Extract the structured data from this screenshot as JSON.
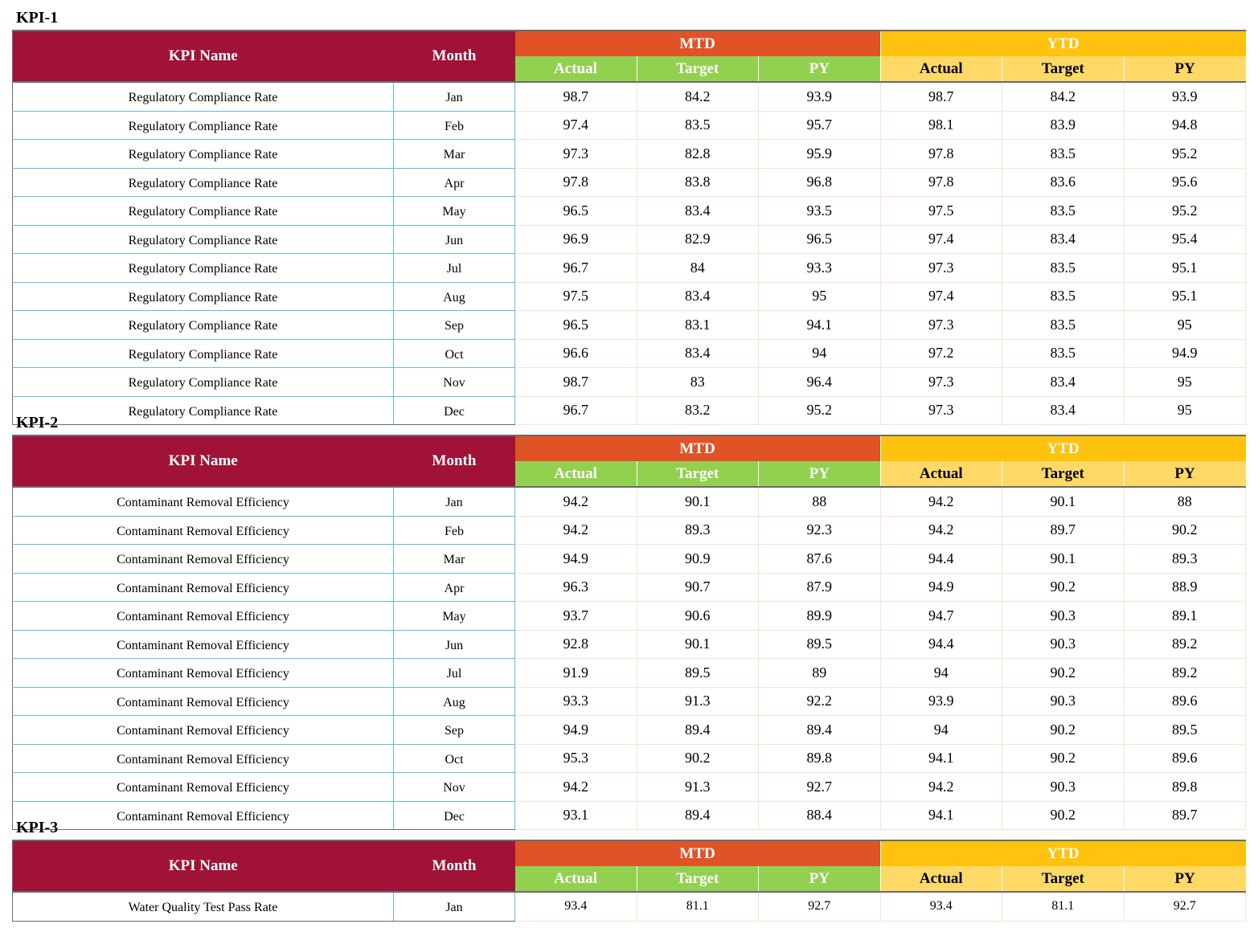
{
  "headers": {
    "kpi_name": "KPI Name",
    "month": "Month",
    "mtd": "MTD",
    "ytd": "YTD",
    "actual": "Actual",
    "target": "Target",
    "py": "PY"
  },
  "colors": {
    "kpi_header": "#a01237",
    "mtd": "#e05326",
    "ytd": "#ffc20e",
    "mtd_sub": "#92d050",
    "ytd_sub": "#ffd966"
  },
  "kpis": [
    {
      "title": "KPI-1",
      "rows": [
        {
          "name": "Regulatory Compliance Rate",
          "month": "Jan",
          "mtd_actual": "98.7",
          "mtd_target": "84.2",
          "mtd_py": "93.9",
          "ytd_actual": "98.7",
          "ytd_target": "84.2",
          "ytd_py": "93.9"
        },
        {
          "name": "Regulatory Compliance Rate",
          "month": "Feb",
          "mtd_actual": "97.4",
          "mtd_target": "83.5",
          "mtd_py": "95.7",
          "ytd_actual": "98.1",
          "ytd_target": "83.9",
          "ytd_py": "94.8"
        },
        {
          "name": "Regulatory Compliance Rate",
          "month": "Mar",
          "mtd_actual": "97.3",
          "mtd_target": "82.8",
          "mtd_py": "95.9",
          "ytd_actual": "97.8",
          "ytd_target": "83.5",
          "ytd_py": "95.2"
        },
        {
          "name": "Regulatory Compliance Rate",
          "month": "Apr",
          "mtd_actual": "97.8",
          "mtd_target": "83.8",
          "mtd_py": "96.8",
          "ytd_actual": "97.8",
          "ytd_target": "83.6",
          "ytd_py": "95.6"
        },
        {
          "name": "Regulatory Compliance Rate",
          "month": "May",
          "mtd_actual": "96.5",
          "mtd_target": "83.4",
          "mtd_py": "93.5",
          "ytd_actual": "97.5",
          "ytd_target": "83.5",
          "ytd_py": "95.2"
        },
        {
          "name": "Regulatory Compliance Rate",
          "month": "Jun",
          "mtd_actual": "96.9",
          "mtd_target": "82.9",
          "mtd_py": "96.5",
          "ytd_actual": "97.4",
          "ytd_target": "83.4",
          "ytd_py": "95.4"
        },
        {
          "name": "Regulatory Compliance Rate",
          "month": "Jul",
          "mtd_actual": "96.7",
          "mtd_target": "84",
          "mtd_py": "93.3",
          "ytd_actual": "97.3",
          "ytd_target": "83.5",
          "ytd_py": "95.1"
        },
        {
          "name": "Regulatory Compliance Rate",
          "month": "Aug",
          "mtd_actual": "97.5",
          "mtd_target": "83.4",
          "mtd_py": "95",
          "ytd_actual": "97.4",
          "ytd_target": "83.5",
          "ytd_py": "95.1"
        },
        {
          "name": "Regulatory Compliance Rate",
          "month": "Sep",
          "mtd_actual": "96.5",
          "mtd_target": "83.1",
          "mtd_py": "94.1",
          "ytd_actual": "97.3",
          "ytd_target": "83.5",
          "ytd_py": "95"
        },
        {
          "name": "Regulatory Compliance Rate",
          "month": "Oct",
          "mtd_actual": "96.6",
          "mtd_target": "83.4",
          "mtd_py": "94",
          "ytd_actual": "97.2",
          "ytd_target": "83.5",
          "ytd_py": "94.9"
        },
        {
          "name": "Regulatory Compliance Rate",
          "month": "Nov",
          "mtd_actual": "98.7",
          "mtd_target": "83",
          "mtd_py": "96.4",
          "ytd_actual": "97.3",
          "ytd_target": "83.4",
          "ytd_py": "95"
        },
        {
          "name": "Regulatory Compliance Rate",
          "month": "Dec",
          "mtd_actual": "96.7",
          "mtd_target": "83.2",
          "mtd_py": "95.2",
          "ytd_actual": "97.3",
          "ytd_target": "83.4",
          "ytd_py": "95"
        }
      ]
    },
    {
      "title": "KPI-2",
      "rows": [
        {
          "name": "Contaminant Removal Efficiency",
          "month": "Jan",
          "mtd_actual": "94.2",
          "mtd_target": "90.1",
          "mtd_py": "88",
          "ytd_actual": "94.2",
          "ytd_target": "90.1",
          "ytd_py": "88"
        },
        {
          "name": "Contaminant Removal Efficiency",
          "month": "Feb",
          "mtd_actual": "94.2",
          "mtd_target": "89.3",
          "mtd_py": "92.3",
          "ytd_actual": "94.2",
          "ytd_target": "89.7",
          "ytd_py": "90.2"
        },
        {
          "name": "Contaminant Removal Efficiency",
          "month": "Mar",
          "mtd_actual": "94.9",
          "mtd_target": "90.9",
          "mtd_py": "87.6",
          "ytd_actual": "94.4",
          "ytd_target": "90.1",
          "ytd_py": "89.3"
        },
        {
          "name": "Contaminant Removal Efficiency",
          "month": "Apr",
          "mtd_actual": "96.3",
          "mtd_target": "90.7",
          "mtd_py": "87.9",
          "ytd_actual": "94.9",
          "ytd_target": "90.2",
          "ytd_py": "88.9"
        },
        {
          "name": "Contaminant Removal Efficiency",
          "month": "May",
          "mtd_actual": "93.7",
          "mtd_target": "90.6",
          "mtd_py": "89.9",
          "ytd_actual": "94.7",
          "ytd_target": "90.3",
          "ytd_py": "89.1"
        },
        {
          "name": "Contaminant Removal Efficiency",
          "month": "Jun",
          "mtd_actual": "92.8",
          "mtd_target": "90.1",
          "mtd_py": "89.5",
          "ytd_actual": "94.4",
          "ytd_target": "90.3",
          "ytd_py": "89.2"
        },
        {
          "name": "Contaminant Removal Efficiency",
          "month": "Jul",
          "mtd_actual": "91.9",
          "mtd_target": "89.5",
          "mtd_py": "89",
          "ytd_actual": "94",
          "ytd_target": "90.2",
          "ytd_py": "89.2"
        },
        {
          "name": "Contaminant Removal Efficiency",
          "month": "Aug",
          "mtd_actual": "93.3",
          "mtd_target": "91.3",
          "mtd_py": "92.2",
          "ytd_actual": "93.9",
          "ytd_target": "90.3",
          "ytd_py": "89.6"
        },
        {
          "name": "Contaminant Removal Efficiency",
          "month": "Sep",
          "mtd_actual": "94.9",
          "mtd_target": "89.4",
          "mtd_py": "89.4",
          "ytd_actual": "94",
          "ytd_target": "90.2",
          "ytd_py": "89.5"
        },
        {
          "name": "Contaminant Removal Efficiency",
          "month": "Oct",
          "mtd_actual": "95.3",
          "mtd_target": "90.2",
          "mtd_py": "89.8",
          "ytd_actual": "94.1",
          "ytd_target": "90.2",
          "ytd_py": "89.6"
        },
        {
          "name": "Contaminant Removal Efficiency",
          "month": "Nov",
          "mtd_actual": "94.2",
          "mtd_target": "91.3",
          "mtd_py": "92.7",
          "ytd_actual": "94.2",
          "ytd_target": "90.3",
          "ytd_py": "89.8"
        },
        {
          "name": "Contaminant Removal Efficiency",
          "month": "Dec",
          "mtd_actual": "93.1",
          "mtd_target": "89.4",
          "mtd_py": "88.4",
          "ytd_actual": "94.1",
          "ytd_target": "90.2",
          "ytd_py": "89.7"
        }
      ]
    },
    {
      "title": "KPI-3",
      "rows": [
        {
          "name": "Water Quality Test Pass Rate",
          "month": "Jan",
          "mtd_actual": "93.4",
          "mtd_target": "81.1",
          "mtd_py": "92.7",
          "ytd_actual": "93.4",
          "ytd_target": "81.1",
          "ytd_py": "92.7"
        }
      ]
    }
  ]
}
